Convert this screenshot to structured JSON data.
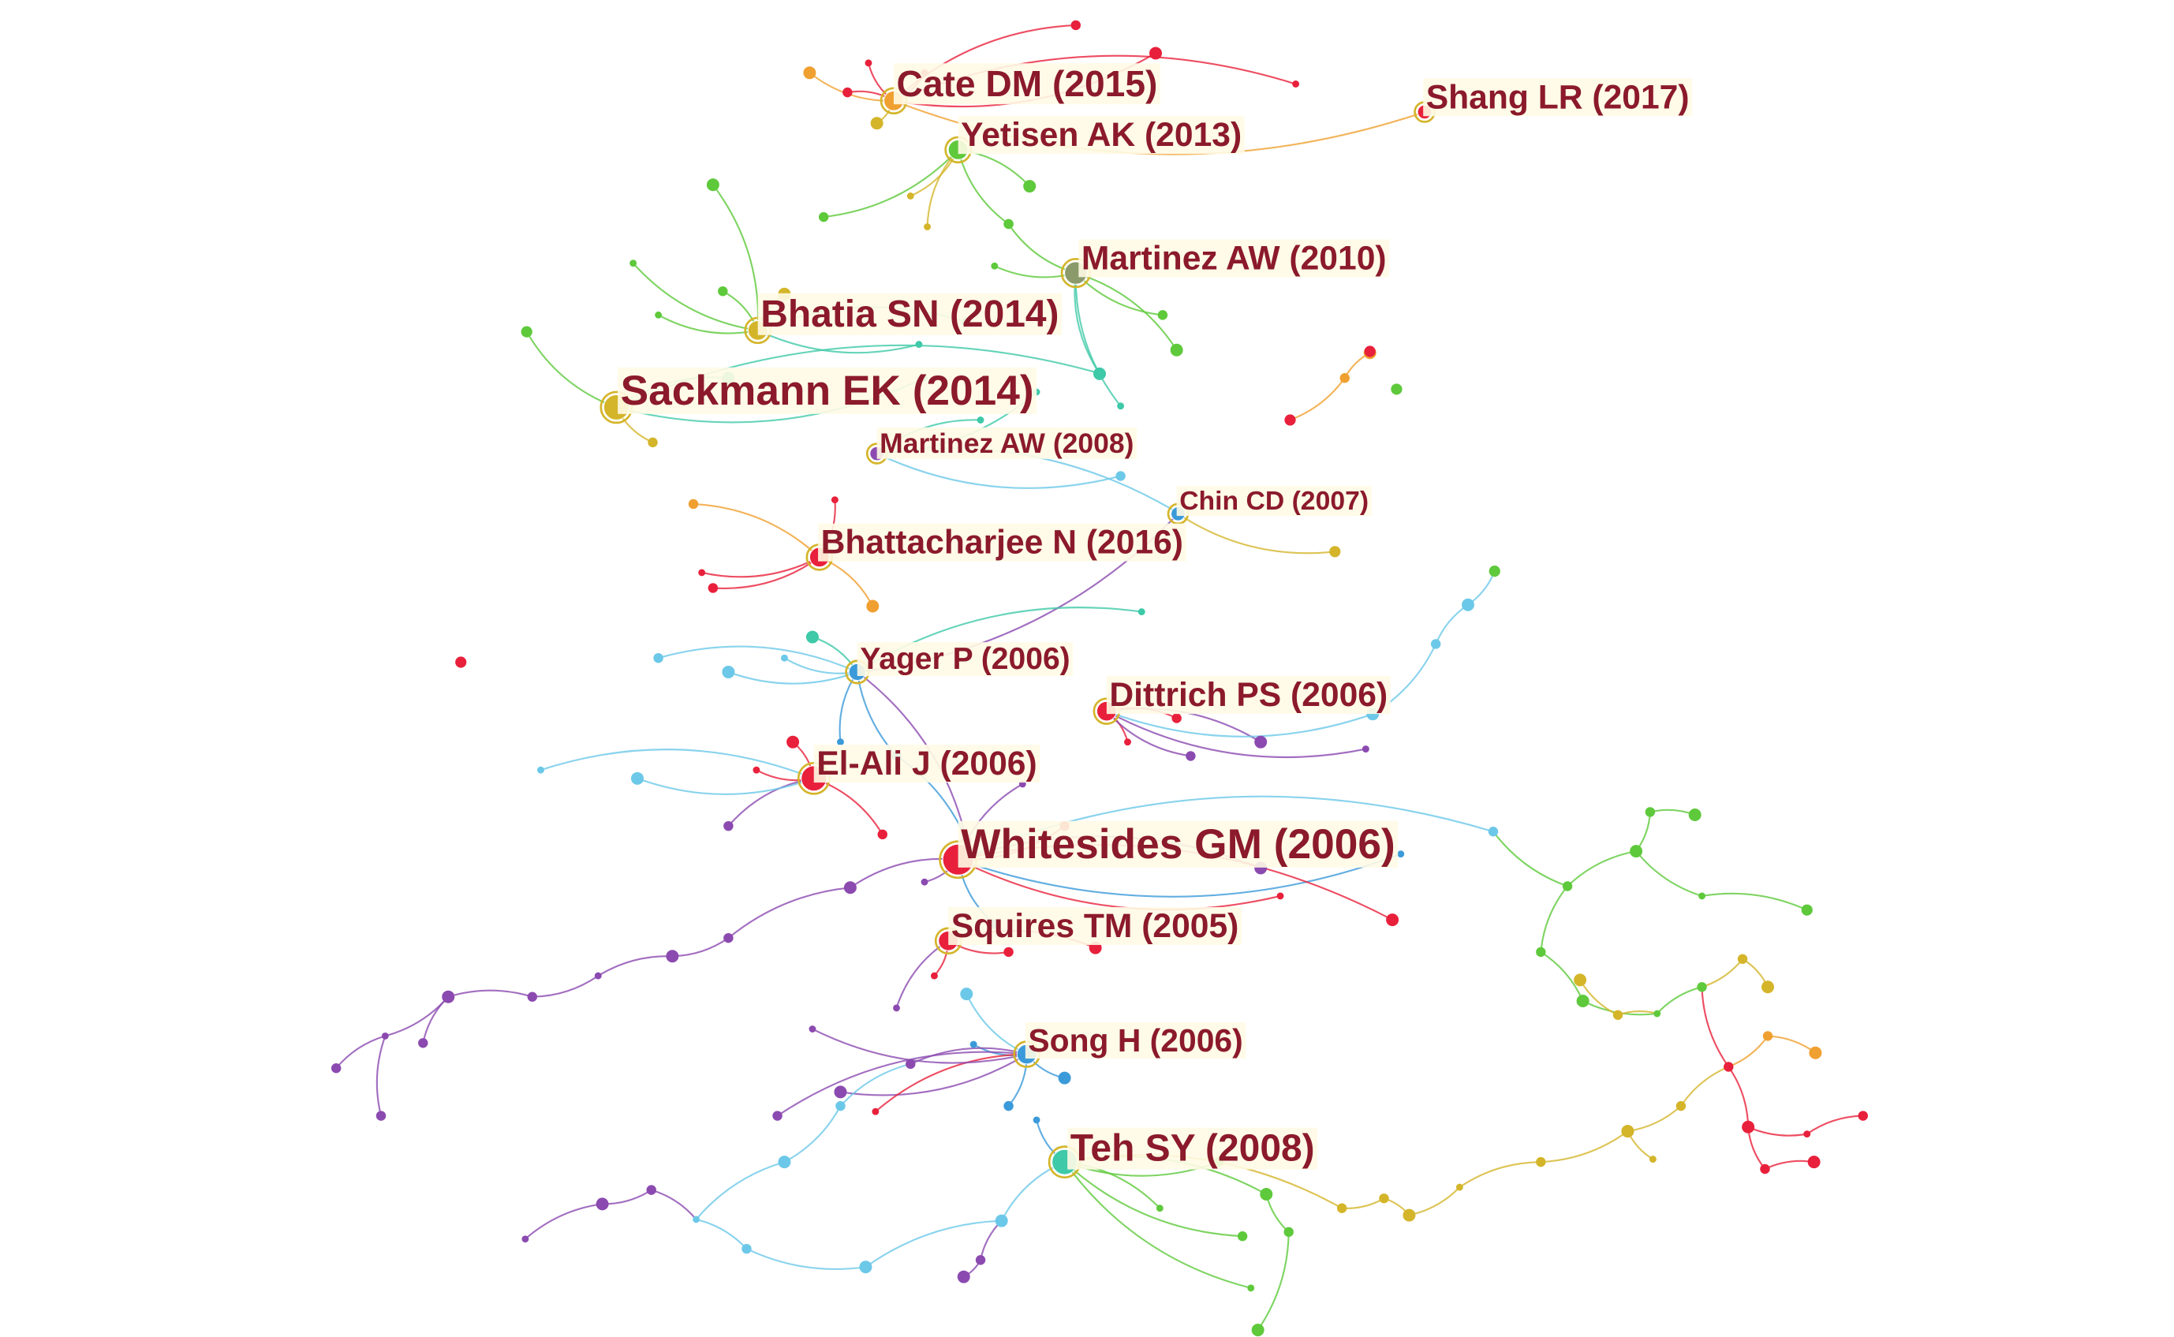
{
  "nodes": [
    {
      "label": "Cate DM (2015)"
    },
    {
      "label": "Yetisen AK (2013)"
    },
    {
      "label": "Shang LR (2017)"
    },
    {
      "label": "Martinez AW (2010)"
    },
    {
      "label": "Bhatia SN (2014)"
    },
    {
      "label": "Sackmann EK (2014)"
    },
    {
      "label": "Martinez AW (2008)"
    },
    {
      "label": "Chin CD (2007)"
    },
    {
      "label": "Bhattacharjee N (2016)"
    },
    {
      "label": "Yager P (2006)"
    },
    {
      "label": "Dittrich PS (2006)"
    },
    {
      "label": "El-Ali J (2006)"
    },
    {
      "label": "Whitesides GM (2006)"
    },
    {
      "label": "Squires TM (2005)"
    },
    {
      "label": "Song H (2006)"
    },
    {
      "label": "Teh SY (2008)"
    }
  ]
}
